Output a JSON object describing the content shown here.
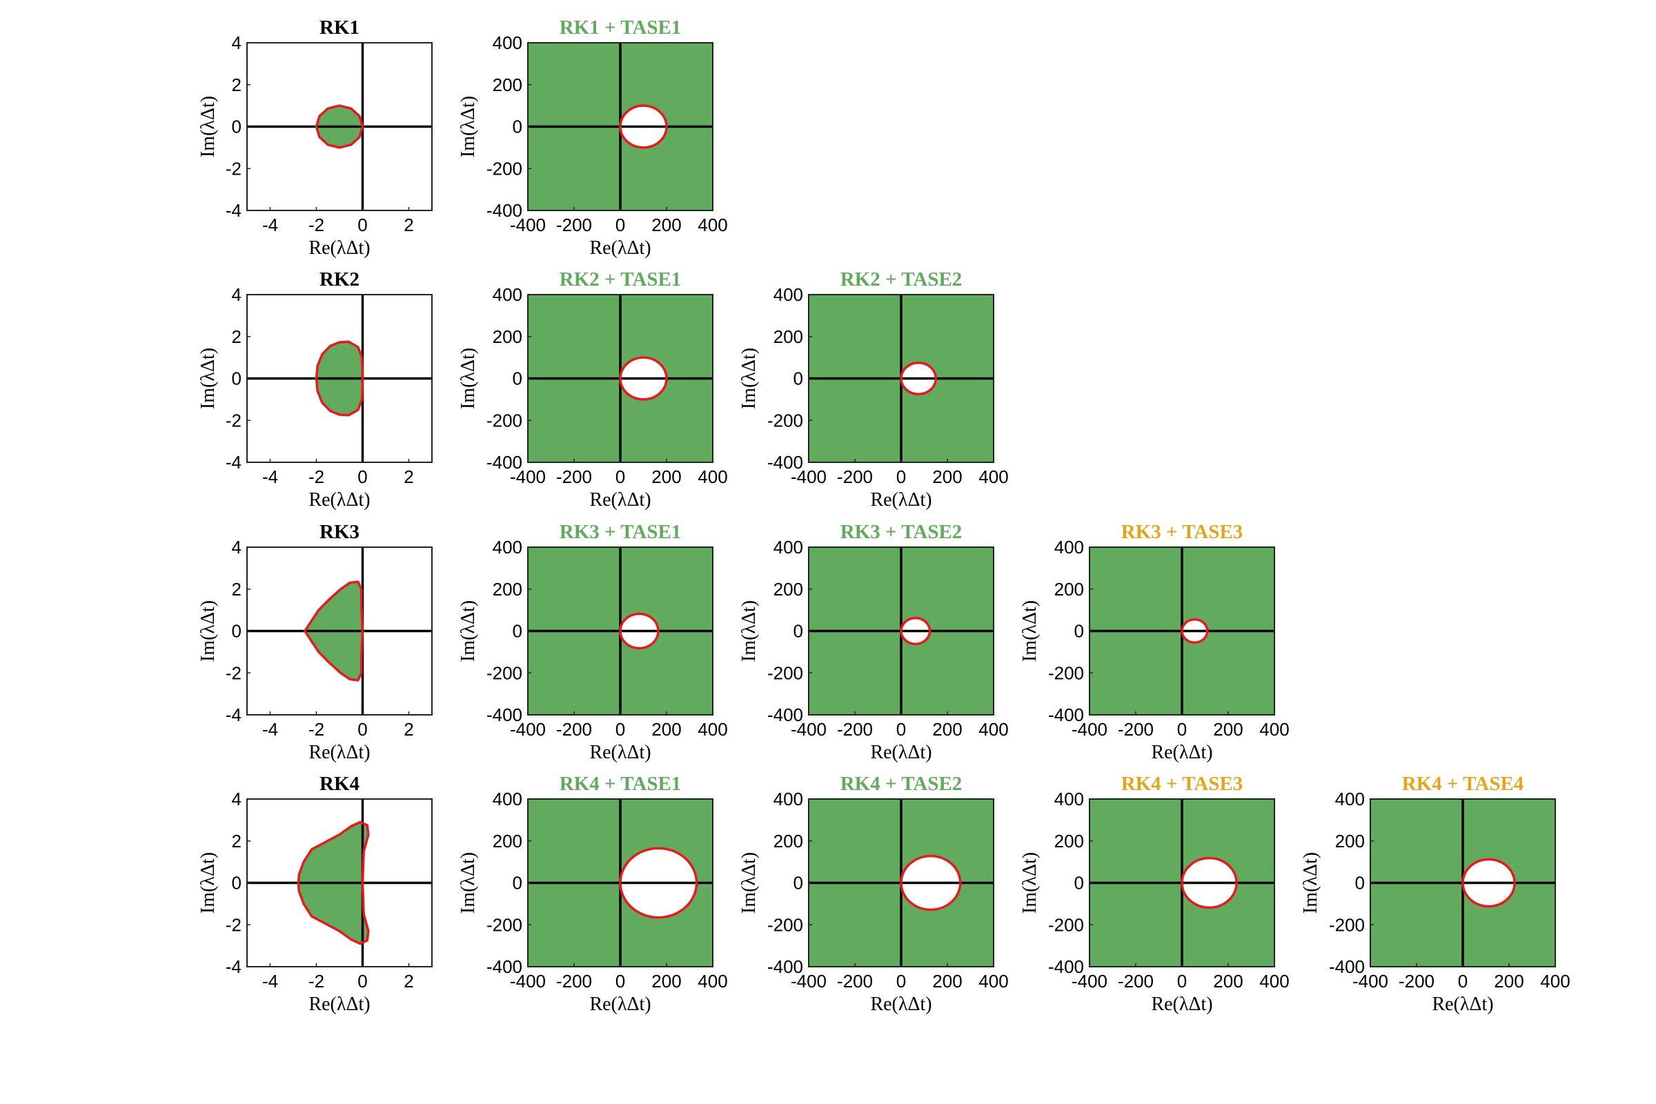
{
  "colors": {
    "stable_fill": "#62aa5e",
    "boundary": "#e8191e",
    "axis": "#000000",
    "title_default": "#000000",
    "title_green": "#62aa5e",
    "title_orange": "#e3a51b"
  },
  "chart_data": [
    {
      "type": "area",
      "title": "RK1",
      "title_color": "title_default",
      "xlabel": "Re(λΔt)",
      "ylabel": "Im(λΔt)",
      "xlim": [
        -5,
        3
      ],
      "ylim": [
        -4,
        4
      ],
      "xticks": [
        -4,
        -2,
        0,
        2
      ],
      "yticks": [
        -4,
        -2,
        0,
        2,
        4
      ],
      "xtick_labels": [
        "-4",
        "-2",
        "0",
        "2"
      ],
      "ytick_labels": [
        "-4",
        "-2",
        "0",
        "2",
        "4"
      ],
      "region": "inside",
      "boundary": [
        [
          0,
          0
        ],
        [
          -0.134,
          0.5
        ],
        [
          -0.5,
          0.866
        ],
        [
          -1,
          1
        ],
        [
          -1.5,
          0.866
        ],
        [
          -1.866,
          0.5
        ],
        [
          -2,
          0
        ],
        [
          -1.866,
          -0.5
        ],
        [
          -1.5,
          -0.866
        ],
        [
          -1,
          -1
        ],
        [
          -0.5,
          -0.866
        ],
        [
          -0.134,
          -0.5
        ]
      ]
    },
    {
      "type": "area",
      "title": "RK1 + TASE1",
      "title_color": "title_green",
      "xlabel": "Re(λΔt)",
      "ylabel": "Im(λΔt)",
      "xlim": [
        -400,
        400
      ],
      "ylim": [
        -400,
        400
      ],
      "xticks": [
        -400,
        -200,
        0,
        200,
        400
      ],
      "yticks": [
        -400,
        -200,
        0,
        200,
        400
      ],
      "xtick_labels": [
        "-400",
        "-200",
        "0",
        "200",
        "400"
      ],
      "ytick_labels": [
        "-400",
        "-200",
        "0",
        "200",
        "400"
      ],
      "region": "outside",
      "boundary_ellipse": {
        "cx": 100,
        "cy": 0,
        "rx": 100,
        "ry": 100
      }
    },
    {
      "type": "area",
      "title": "RK2",
      "title_color": "title_default",
      "xlabel": "Re(λΔt)",
      "ylabel": "Im(λΔt)",
      "xlim": [
        -5,
        3
      ],
      "ylim": [
        -4,
        4
      ],
      "xticks": [
        -4,
        -2,
        0,
        2
      ],
      "yticks": [
        -4,
        -2,
        0,
        2,
        4
      ],
      "xtick_labels": [
        "-4",
        "-2",
        "0",
        "2"
      ],
      "ytick_labels": [
        "-4",
        "-2",
        "0",
        "2",
        "4"
      ],
      "region": "inside",
      "boundary": [
        [
          0,
          0
        ],
        [
          -0.02,
          1.0
        ],
        [
          -0.2,
          1.5
        ],
        [
          -0.6,
          1.75
        ],
        [
          -1.0,
          1.73
        ],
        [
          -1.4,
          1.55
        ],
        [
          -1.75,
          1.15
        ],
        [
          -1.95,
          0.6
        ],
        [
          -2,
          0
        ],
        [
          -1.95,
          -0.6
        ],
        [
          -1.75,
          -1.15
        ],
        [
          -1.4,
          -1.55
        ],
        [
          -1.0,
          -1.73
        ],
        [
          -0.6,
          -1.75
        ],
        [
          -0.2,
          -1.5
        ],
        [
          -0.02,
          -1.0
        ]
      ]
    },
    {
      "type": "area",
      "title": "RK2 + TASE1",
      "title_color": "title_green",
      "xlabel": "Re(λΔt)",
      "ylabel": "Im(λΔt)",
      "xlim": [
        -400,
        400
      ],
      "ylim": [
        -400,
        400
      ],
      "xticks": [
        -400,
        -200,
        0,
        200,
        400
      ],
      "yticks": [
        -400,
        -200,
        0,
        200,
        400
      ],
      "xtick_labels": [
        "-400",
        "-200",
        "0",
        "200",
        "400"
      ],
      "ytick_labels": [
        "-400",
        "-200",
        "0",
        "200",
        "400"
      ],
      "region": "outside",
      "boundary_ellipse": {
        "cx": 100,
        "cy": 0,
        "rx": 100,
        "ry": 100
      }
    },
    {
      "type": "area",
      "title": "RK2 + TASE2",
      "title_color": "title_green",
      "xlabel": "Re(λΔt)",
      "ylabel": "Im(λΔt)",
      "xlim": [
        -400,
        400
      ],
      "ylim": [
        -400,
        400
      ],
      "xticks": [
        -400,
        -200,
        0,
        200,
        400
      ],
      "yticks": [
        -400,
        -200,
        0,
        200,
        400
      ],
      "xtick_labels": [
        "-400",
        "-200",
        "0",
        "200",
        "400"
      ],
      "ytick_labels": [
        "-400",
        "-200",
        "0",
        "200",
        "400"
      ],
      "region": "outside",
      "boundary_ellipse": {
        "cx": 75,
        "cy": 0,
        "rx": 75,
        "ry": 75
      }
    },
    {
      "type": "area",
      "title": "RK3",
      "title_color": "title_default",
      "xlabel": "Re(λΔt)",
      "ylabel": "Im(λΔt)",
      "xlim": [
        -5,
        3
      ],
      "ylim": [
        -4,
        4
      ],
      "xticks": [
        -4,
        -2,
        0,
        2
      ],
      "yticks": [
        -4,
        -2,
        0,
        2,
        4
      ],
      "xtick_labels": [
        "-4",
        "-2",
        "0",
        "2"
      ],
      "ytick_labels": [
        "-4",
        "-2",
        "0",
        "2",
        "4"
      ],
      "region": "inside",
      "boundary": [
        [
          0,
          0
        ],
        [
          -0.05,
          1.2
        ],
        [
          -0.05,
          2.0
        ],
        [
          -0.2,
          2.35
        ],
        [
          -0.55,
          2.3
        ],
        [
          -0.95,
          2.0
        ],
        [
          -1.45,
          1.5
        ],
        [
          -1.9,
          1.0
        ],
        [
          -2.2,
          0.5
        ],
        [
          -2.5,
          0
        ],
        [
          -2.2,
          -0.5
        ],
        [
          -1.9,
          -1.0
        ],
        [
          -1.45,
          -1.5
        ],
        [
          -0.95,
          -2.0
        ],
        [
          -0.55,
          -2.3
        ],
        [
          -0.2,
          -2.35
        ],
        [
          -0.05,
          -2.0
        ],
        [
          -0.05,
          -1.2
        ]
      ]
    },
    {
      "type": "area",
      "title": "RK3 + TASE1",
      "title_color": "title_green",
      "xlabel": "Re(λΔt)",
      "ylabel": "Im(λΔt)",
      "xlim": [
        -400,
        400
      ],
      "ylim": [
        -400,
        400
      ],
      "xticks": [
        -400,
        -200,
        0,
        200,
        400
      ],
      "yticks": [
        -400,
        -200,
        0,
        200,
        400
      ],
      "xtick_labels": [
        "-400",
        "-200",
        "0",
        "200",
        "400"
      ],
      "ytick_labels": [
        "-400",
        "-200",
        "0",
        "200",
        "400"
      ],
      "region": "outside",
      "boundary_ellipse": {
        "cx": 82,
        "cy": 0,
        "rx": 82,
        "ry": 82
      }
    },
    {
      "type": "area",
      "title": "RK3 + TASE2",
      "title_color": "title_green",
      "xlabel": "Re(λΔt)",
      "ylabel": "Im(λΔt)",
      "xlim": [
        -400,
        400
      ],
      "ylim": [
        -400,
        400
      ],
      "xticks": [
        -400,
        -200,
        0,
        200,
        400
      ],
      "yticks": [
        -400,
        -200,
        0,
        200,
        400
      ],
      "xtick_labels": [
        "-400",
        "-200",
        "0",
        "200",
        "400"
      ],
      "ytick_labels": [
        "-400",
        "-200",
        "0",
        "200",
        "400"
      ],
      "region": "outside",
      "boundary_ellipse": {
        "cx": 62,
        "cy": 0,
        "rx": 62,
        "ry": 62
      }
    },
    {
      "type": "area",
      "title": "RK3 + TASE3",
      "title_color": "title_orange",
      "xlabel": "Re(λΔt)",
      "ylabel": "Im(λΔt)",
      "xlim": [
        -400,
        400
      ],
      "ylim": [
        -400,
        400
      ],
      "xticks": [
        -400,
        -200,
        0,
        200,
        400
      ],
      "yticks": [
        -400,
        -200,
        0,
        200,
        400
      ],
      "xtick_labels": [
        "-400",
        "-200",
        "0",
        "200",
        "400"
      ],
      "ytick_labels": [
        "-400",
        "-200",
        "0",
        "200",
        "400"
      ],
      "region": "outside",
      "boundary_ellipse": {
        "cx": 55,
        "cy": 0,
        "rx": 55,
        "ry": 55
      }
    },
    {
      "type": "area",
      "title": "RK4",
      "title_color": "title_default",
      "xlabel": "Re(λΔt)",
      "ylabel": "Im(λΔt)",
      "xlim": [
        -5,
        3
      ],
      "ylim": [
        -4,
        4
      ],
      "xticks": [
        -4,
        -2,
        0,
        2
      ],
      "yticks": [
        -4,
        -2,
        0,
        2,
        4
      ],
      "xtick_labels": [
        "-4",
        "-2",
        "0",
        "2"
      ],
      "ytick_labels": [
        "-4",
        "-2",
        "0",
        "2",
        "4"
      ],
      "region": "inside",
      "boundary": [
        [
          0,
          0
        ],
        [
          0.05,
          1.5
        ],
        [
          0.25,
          2.3
        ],
        [
          0.2,
          2.75
        ],
        [
          -0.1,
          2.9
        ],
        [
          -0.5,
          2.7
        ],
        [
          -1.0,
          2.3
        ],
        [
          -1.6,
          1.95
        ],
        [
          -2.2,
          1.6
        ],
        [
          -2.55,
          1.0
        ],
        [
          -2.75,
          0.4
        ],
        [
          -2.78,
          0
        ],
        [
          -2.75,
          -0.4
        ],
        [
          -2.55,
          -1.0
        ],
        [
          -2.2,
          -1.6
        ],
        [
          -1.6,
          -1.95
        ],
        [
          -1.0,
          -2.3
        ],
        [
          -0.5,
          -2.7
        ],
        [
          -0.1,
          -2.9
        ],
        [
          0.2,
          -2.75
        ],
        [
          0.25,
          -2.3
        ],
        [
          0.05,
          -1.5
        ]
      ]
    },
    {
      "type": "area",
      "title": "RK4 + TASE1",
      "title_color": "title_green",
      "xlabel": "Re(λΔt)",
      "ylabel": "Im(λΔt)",
      "xlim": [
        -400,
        400
      ],
      "ylim": [
        -400,
        400
      ],
      "xticks": [
        -400,
        -200,
        0,
        200,
        400
      ],
      "yticks": [
        -400,
        -200,
        0,
        200,
        400
      ],
      "xtick_labels": [
        "-400",
        "-200",
        "0",
        "200",
        "400"
      ],
      "ytick_labels": [
        "-400",
        "-200",
        "0",
        "200",
        "400"
      ],
      "region": "outside",
      "boundary_ellipse": {
        "cx": 165,
        "cy": 0,
        "rx": 165,
        "ry": 165
      }
    },
    {
      "type": "area",
      "title": "RK4 + TASE2",
      "title_color": "title_green",
      "xlabel": "Re(λΔt)",
      "ylabel": "Im(λΔt)",
      "xlim": [
        -400,
        400
      ],
      "ylim": [
        -400,
        400
      ],
      "xticks": [
        -400,
        -200,
        0,
        200,
        400
      ],
      "yticks": [
        -400,
        -200,
        0,
        200,
        400
      ],
      "xtick_labels": [
        "-400",
        "-200",
        "0",
        "200",
        "400"
      ],
      "ytick_labels": [
        "-400",
        "-200",
        "0",
        "200",
        "400"
      ],
      "region": "outside",
      "boundary_ellipse": {
        "cx": 128,
        "cy": 0,
        "rx": 128,
        "ry": 128
      }
    },
    {
      "type": "area",
      "title": "RK4 + TASE3",
      "title_color": "title_orange",
      "xlabel": "Re(λΔt)",
      "ylabel": "Im(λΔt)",
      "xlim": [
        -400,
        400
      ],
      "ylim": [
        -400,
        400
      ],
      "xticks": [
        -400,
        -200,
        0,
        200,
        400
      ],
      "yticks": [
        -400,
        -200,
        0,
        200,
        400
      ],
      "xtick_labels": [
        "-400",
        "-200",
        "0",
        "200",
        "400"
      ],
      "ytick_labels": [
        "-400",
        "-200",
        "0",
        "200",
        "400"
      ],
      "region": "outside",
      "boundary_ellipse": {
        "cx": 118,
        "cy": 0,
        "rx": 118,
        "ry": 118
      }
    },
    {
      "type": "area",
      "title": "RK4 + TASE4",
      "title_color": "title_orange",
      "xlabel": "Re(λΔt)",
      "ylabel": "Im(λΔt)",
      "xlim": [
        -400,
        400
      ],
      "ylim": [
        -400,
        400
      ],
      "xticks": [
        -400,
        -200,
        0,
        200,
        400
      ],
      "yticks": [
        -400,
        -200,
        0,
        200,
        400
      ],
      "xtick_labels": [
        "-400",
        "-200",
        "0",
        "200",
        "400"
      ],
      "ytick_labels": [
        "-400",
        "-200",
        "0",
        "200",
        "400"
      ],
      "region": "outside",
      "boundary_ellipse": {
        "cx": 112,
        "cy": 0,
        "rx": 112,
        "ry": 112
      }
    }
  ]
}
